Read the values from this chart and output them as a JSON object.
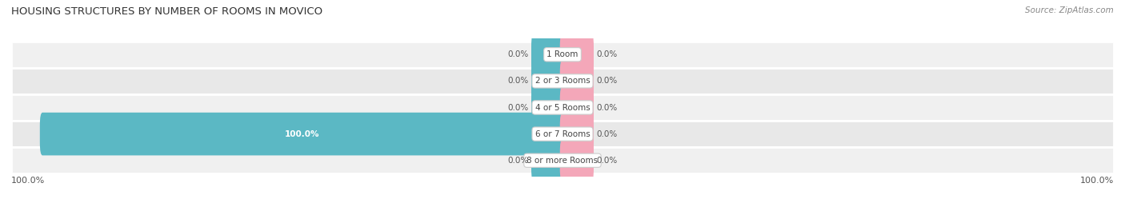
{
  "title": "HOUSING STRUCTURES BY NUMBER OF ROOMS IN MOVICO",
  "source": "Source: ZipAtlas.com",
  "categories": [
    "1 Room",
    "2 or 3 Rooms",
    "4 or 5 Rooms",
    "6 or 7 Rooms",
    "8 or more Rooms"
  ],
  "owner_values": [
    0.0,
    0.0,
    0.0,
    100.0,
    0.0
  ],
  "renter_values": [
    0.0,
    0.0,
    0.0,
    0.0,
    0.0
  ],
  "owner_color": "#5bb8c4",
  "renter_color": "#f4a7b9",
  "row_colors": [
    "#f0f0f0",
    "#e8e8e8"
  ],
  "label_color": "#555555",
  "title_color": "#333333",
  "x_max": 100,
  "min_bar_width": 5.5,
  "bottom_left_label": "100.0%",
  "bottom_right_label": "100.0%"
}
